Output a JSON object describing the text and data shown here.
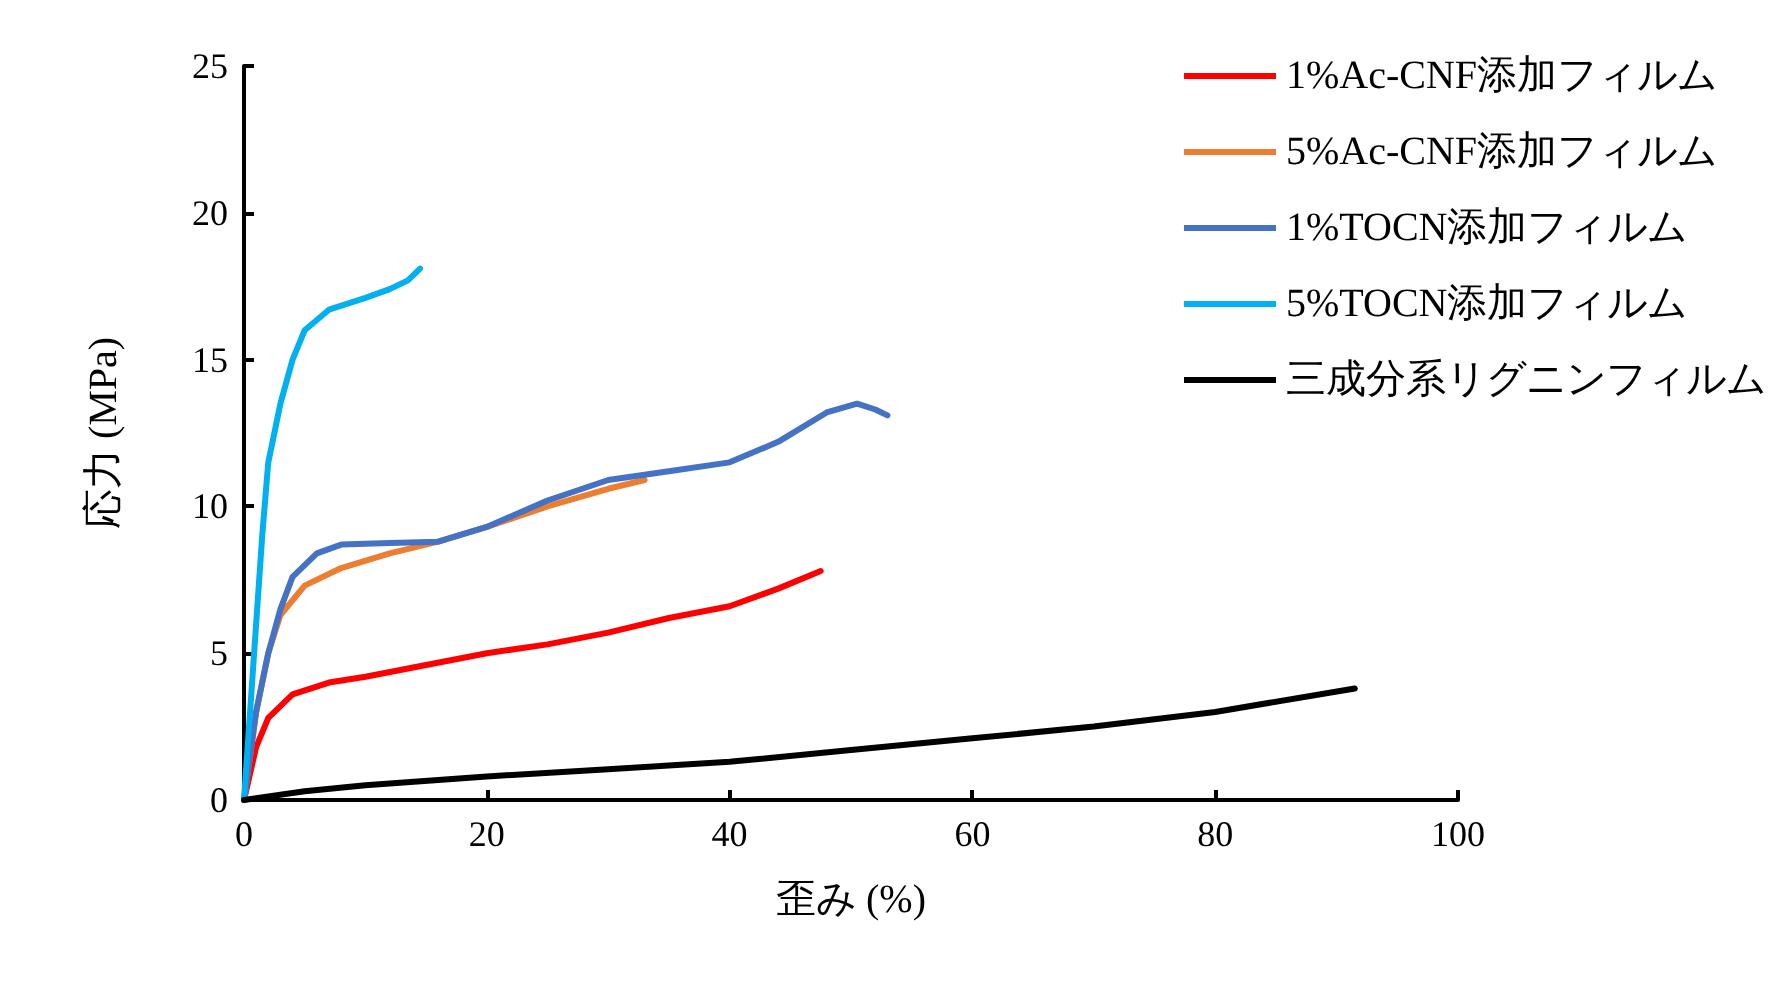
{
  "chart_data": {
    "type": "line",
    "xlabel": "歪み (%)",
    "ylabel": "応力 (MPa)",
    "xlim": [
      0,
      100
    ],
    "xticks": [
      0,
      20,
      40,
      60,
      80,
      100
    ],
    "ylim": [
      0,
      25
    ],
    "yticks": [
      0,
      5,
      10,
      15,
      20,
      25
    ],
    "grid": false,
    "legend": "top right",
    "marker": "none",
    "line_style": "solid",
    "series": [
      {
        "name": "1%Ac-CNF添加フィルム",
        "color": "#ff0000",
        "x": [
          0,
          1,
          2,
          4,
          7,
          10,
          15,
          20,
          25,
          30,
          35,
          40,
          44,
          47.5
        ],
        "values": [
          0,
          1.8,
          2.8,
          3.6,
          4,
          4.2,
          4.6,
          5,
          5.3,
          5.7,
          6.2,
          6.6,
          7.2,
          7.8
        ]
      },
      {
        "name": "5%Ac-CNF添加フィルム",
        "color": "#ed7d31",
        "x": [
          0,
          1,
          2,
          3,
          5,
          8,
          12,
          16,
          20,
          25,
          30,
          33
        ],
        "values": [
          0,
          3,
          5,
          6.3,
          7.3,
          7.9,
          8.4,
          8.8,
          9.3,
          10,
          10.6,
          10.9
        ]
      },
      {
        "name": "1%TOCN添加フィルム",
        "color": "#4472c4",
        "x": [
          0,
          1,
          2,
          3,
          4,
          6,
          8,
          12,
          16,
          20,
          25,
          30,
          35,
          40,
          44,
          48,
          50.5,
          52,
          53
        ],
        "values": [
          0,
          3,
          5,
          6.5,
          7.6,
          8.4,
          8.7,
          8.75,
          8.8,
          9.3,
          10.2,
          10.9,
          11.2,
          11.5,
          12.2,
          13.2,
          13.5,
          13.3,
          13.1
        ]
      },
      {
        "name": "5%TOCN添加フィルム",
        "color": "#00b0f0",
        "x": [
          0,
          0.5,
          1,
          1.5,
          2,
          3,
          4,
          5,
          7,
          10,
          12,
          13.5,
          14.5
        ],
        "values": [
          0,
          3,
          6,
          9,
          11.5,
          13.5,
          15,
          16,
          16.7,
          17.1,
          17.4,
          17.7,
          18.1
        ]
      },
      {
        "name": "三成分系リグニンフィルム",
        "color": "#000000",
        "x": [
          0,
          5,
          10,
          20,
          30,
          40,
          50,
          60,
          70,
          80,
          91.5
        ],
        "values": [
          0,
          0.3,
          0.5,
          0.8,
          1.05,
          1.3,
          1.7,
          2.1,
          2.5,
          3,
          3.8
        ]
      }
    ]
  }
}
